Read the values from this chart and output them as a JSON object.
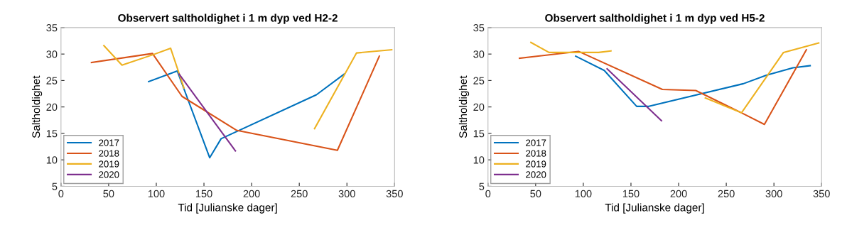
{
  "chart_data": [
    {
      "type": "line",
      "title": "Observert saltholdighet i 1 m dyp ved H2-2",
      "xlabel": "Tid [Julianske dager]",
      "ylabel": "Saltholdighet",
      "xlim": [
        0,
        350
      ],
      "ylim": [
        5,
        35
      ],
      "xticks": [
        0,
        50,
        100,
        150,
        200,
        250,
        300,
        350
      ],
      "yticks": [
        5,
        10,
        15,
        20,
        25,
        30,
        35
      ],
      "legend": "bottom left",
      "grid": false,
      "series": [
        {
          "name": "2017",
          "color": "#0072bd",
          "x": [
            92,
            122,
            156,
            168,
            268,
            297
          ],
          "values": [
            24.8,
            26.8,
            10.4,
            14,
            22.3,
            26.2
          ]
        },
        {
          "name": "2018",
          "color": "#d95319",
          "x": [
            32,
            96,
            127,
            184,
            290,
            334
          ],
          "values": [
            28.4,
            30.1,
            22,
            15.6,
            11.8,
            29.6
          ]
        },
        {
          "name": "2019",
          "color": "#edb120",
          "x": [
            45,
            64,
            97,
            115,
            129,
            200,
            266,
            310,
            347
          ],
          "values": [
            31.6,
            27.9,
            29.9,
            31.1,
            23.6,
            null,
            15.9,
            30.2,
            30.8
          ]
        },
        {
          "name": "2020",
          "color": "#7e2f8e",
          "x": [
            124,
            183
          ],
          "values": [
            26.2,
            11.7
          ]
        }
      ]
    },
    {
      "type": "line",
      "title": "Observert saltholdighet i 1 m dyp ved H5-2",
      "xlabel": "Tid [Julianske dager]",
      "ylabel": "Saltholdighet",
      "xlim": [
        0,
        350
      ],
      "ylim": [
        5,
        35
      ],
      "xticks": [
        0,
        50,
        100,
        150,
        200,
        250,
        300,
        350
      ],
      "yticks": [
        5,
        10,
        15,
        20,
        25,
        30,
        35
      ],
      "legend": "bottom left",
      "grid": false,
      "series": [
        {
          "name": "2017",
          "color": "#0072bd",
          "x": [
            92,
            122,
            156,
            168,
            268,
            292,
            320,
            338
          ],
          "values": [
            29.6,
            26.9,
            20.1,
            20.1,
            24.4,
            26,
            27.4,
            27.8
          ]
        },
        {
          "name": "2018",
          "color": "#d95319",
          "x": [
            33,
            95,
            183,
            218,
            267,
            290,
            334
          ],
          "values": [
            29.2,
            30.5,
            23.3,
            23.1,
            18.8,
            16.7,
            30.8
          ]
        },
        {
          "name": "2019",
          "color": "#edb120",
          "x": [
            45,
            64,
            116,
            129,
            180,
            228,
            266,
            310,
            347
          ],
          "values": [
            32.2,
            30.3,
            30.3,
            30.6,
            null,
            21.7,
            18.9,
            30.3,
            32.1
          ]
        },
        {
          "name": "2020",
          "color": "#7e2f8e",
          "x": [
            125,
            182
          ],
          "values": [
            27.2,
            17.4
          ]
        }
      ]
    }
  ]
}
